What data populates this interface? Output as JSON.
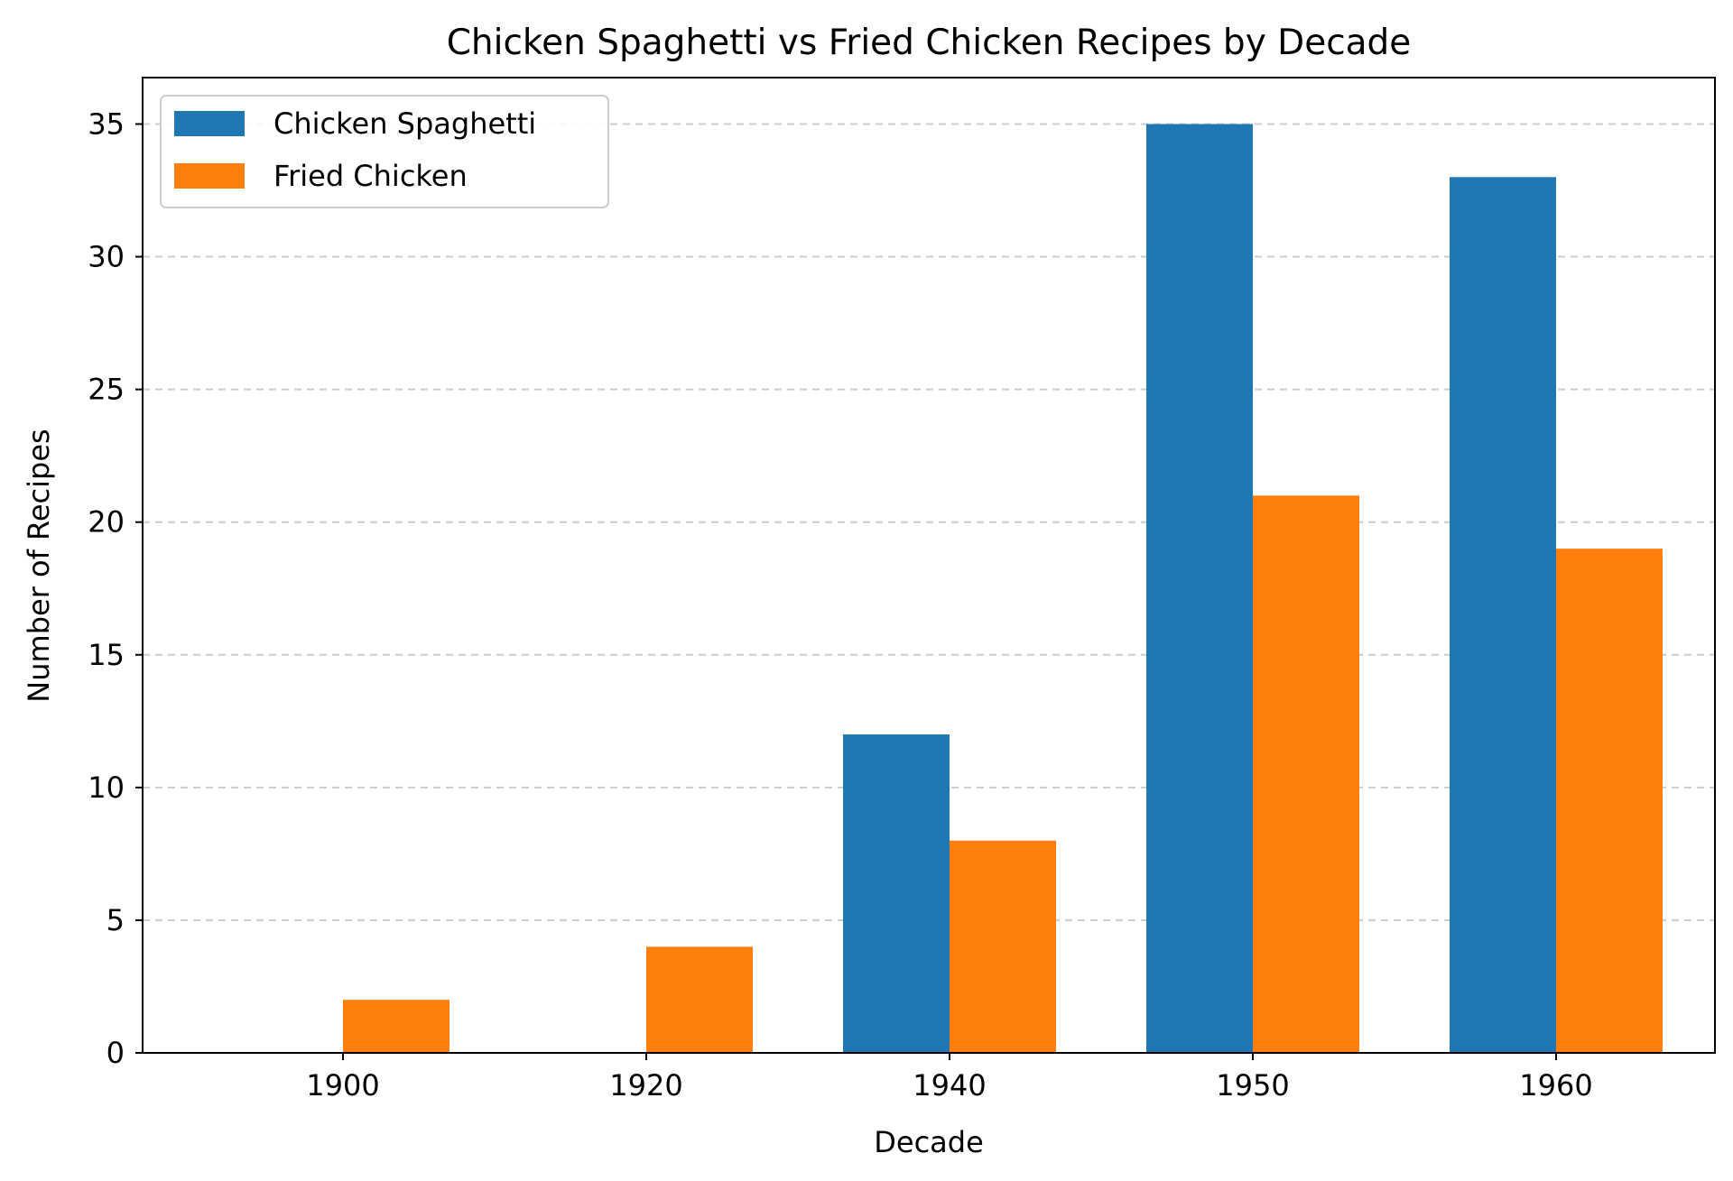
{
  "chart_data": {
    "type": "bar",
    "title": "Chicken Spaghetti vs Fried Chicken Recipes by Decade",
    "xlabel": "Decade",
    "ylabel": "Number of Recipes",
    "categories": [
      "1900",
      "1920",
      "1940",
      "1950",
      "1960"
    ],
    "series": [
      {
        "name": "Chicken Spaghetti",
        "color": "#1f77b4",
        "values": [
          0,
          0,
          12,
          35,
          33
        ]
      },
      {
        "name": "Fried Chicken",
        "color": "#ff7f0e",
        "values": [
          2,
          4,
          8,
          21,
          19
        ]
      }
    ],
    "ylim": [
      0,
      36.75
    ],
    "yticks": [
      0,
      5,
      10,
      15,
      20,
      25,
      30,
      35
    ],
    "grid": "y-dashed",
    "legend": "top-left"
  }
}
